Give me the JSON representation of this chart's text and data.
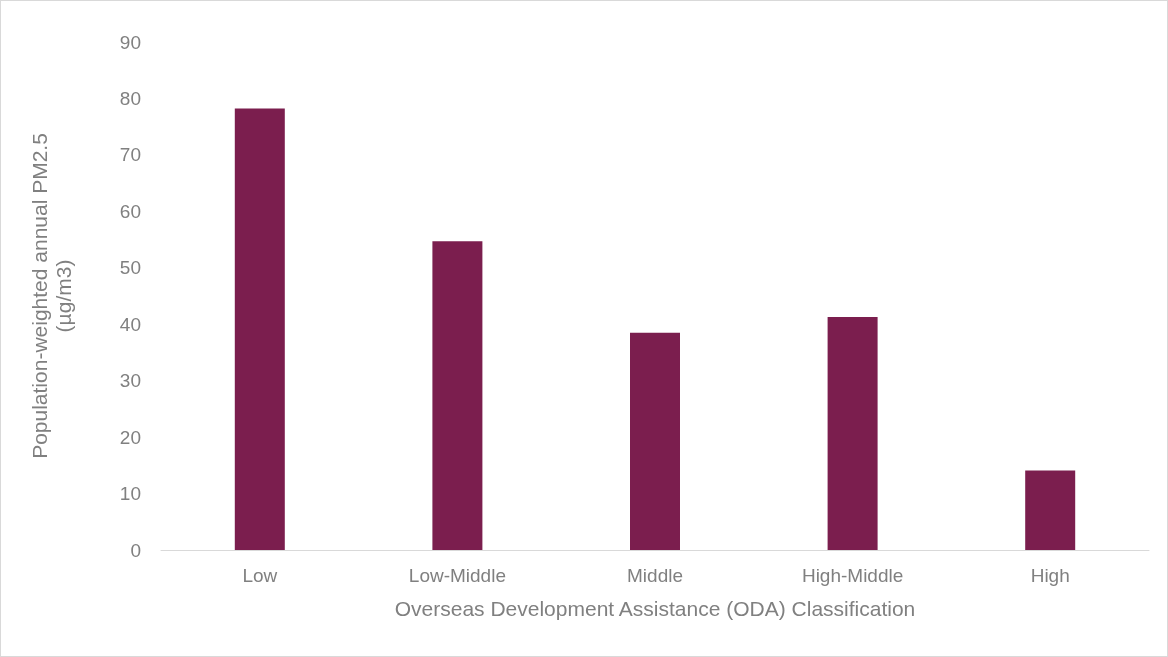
{
  "chart_data": {
    "type": "bar",
    "xlabel": "Overseas Development Assistance (ODA) Classification",
    "ylabel": "Population-weighted annual PM2.5\n(µg/m3)",
    "categories": [
      "Low",
      "Low-Middle",
      "Middle",
      "High-Middle",
      "High"
    ],
    "values": [
      78.2,
      54.7,
      38.5,
      41.3,
      14.1
    ],
    "color": "#7b1e4e",
    "ylim": [
      0,
      90
    ],
    "yticks": [
      0,
      10,
      20,
      30,
      40,
      50,
      60,
      70,
      80,
      90
    ],
    "grid": false
  }
}
